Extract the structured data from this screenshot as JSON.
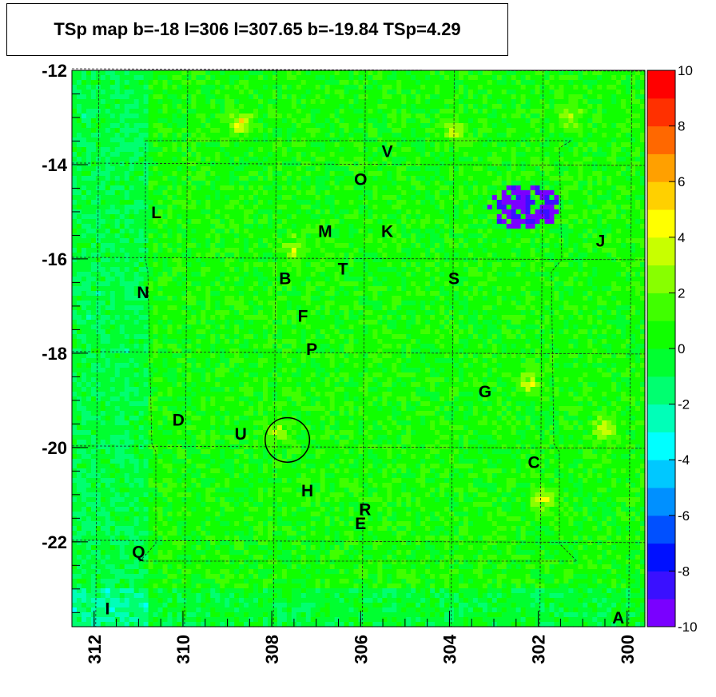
{
  "chart_data": {
    "type": "heatmap",
    "title": "TSp map b=-18 l=306 l=307.65 b=-19.84 TSp=4.29",
    "xlabel": "",
    "ylabel": "",
    "xlim": [
      312.5,
      299.6
    ],
    "ylim": [
      -23.8,
      -12
    ],
    "x_ticks": [
      312,
      310,
      308,
      306,
      304,
      302,
      300
    ],
    "y_ticks": [
      -12,
      -14,
      -16,
      -18,
      -20,
      -22
    ],
    "colorbar": {
      "min": -10,
      "max": 10,
      "ticks": [
        10,
        8,
        6,
        4,
        2,
        0,
        -2,
        -4,
        -6,
        -8,
        -10
      ]
    },
    "background_level": 0.5,
    "hotspots": [
      {
        "l": 300.5,
        "b": -19.6,
        "value": 3.5
      },
      {
        "l": 302.2,
        "b": -18.6,
        "value": 3
      },
      {
        "l": 301.9,
        "b": -21.1,
        "value": 3.5
      },
      {
        "l": 308.7,
        "b": -13.1,
        "value": 4
      },
      {
        "l": 307.9,
        "b": -19.7,
        "value": 3
      },
      {
        "l": 303.9,
        "b": -13.3,
        "value": 3.2
      },
      {
        "l": 301.3,
        "b": -13.0,
        "value": 3
      },
      {
        "l": 307.5,
        "b": -15.8,
        "value": 2.5
      }
    ],
    "deficit_region": {
      "l": 302.3,
      "b": -14.9,
      "value": -8
    },
    "sources": [
      {
        "name": "V",
        "l": 305.4,
        "b": -13.7
      },
      {
        "name": "O",
        "l": 306.0,
        "b": -14.3
      },
      {
        "name": "L",
        "l": 310.6,
        "b": -15.0
      },
      {
        "name": "M",
        "l": 306.8,
        "b": -15.4
      },
      {
        "name": "K",
        "l": 305.4,
        "b": -15.4
      },
      {
        "name": "J",
        "l": 300.6,
        "b": -15.6
      },
      {
        "name": "T",
        "l": 306.4,
        "b": -16.2
      },
      {
        "name": "B",
        "l": 307.7,
        "b": -16.4
      },
      {
        "name": "S",
        "l": 303.9,
        "b": -16.4
      },
      {
        "name": "N",
        "l": 310.9,
        "b": -16.7
      },
      {
        "name": "F",
        "l": 307.3,
        "b": -17.2
      },
      {
        "name": "P",
        "l": 307.1,
        "b": -17.9
      },
      {
        "name": "G",
        "l": 303.2,
        "b": -18.8
      },
      {
        "name": "D",
        "l": 310.1,
        "b": -19.4
      },
      {
        "name": "U",
        "l": 308.7,
        "b": -19.7
      },
      {
        "name": "C",
        "l": 302.1,
        "b": -20.3
      },
      {
        "name": "H",
        "l": 307.2,
        "b": -20.9
      },
      {
        "name": "R",
        "l": 305.9,
        "b": -21.3
      },
      {
        "name": "E",
        "l": 306.0,
        "b": -21.6
      },
      {
        "name": "Q",
        "l": 311.0,
        "b": -22.2
      },
      {
        "name": "I",
        "l": 311.7,
        "b": -23.4
      },
      {
        "name": "A",
        "l": 300.2,
        "b": -23.6
      }
    ],
    "circle": {
      "l": 307.65,
      "b": -19.84,
      "radius": 0.5
    }
  }
}
